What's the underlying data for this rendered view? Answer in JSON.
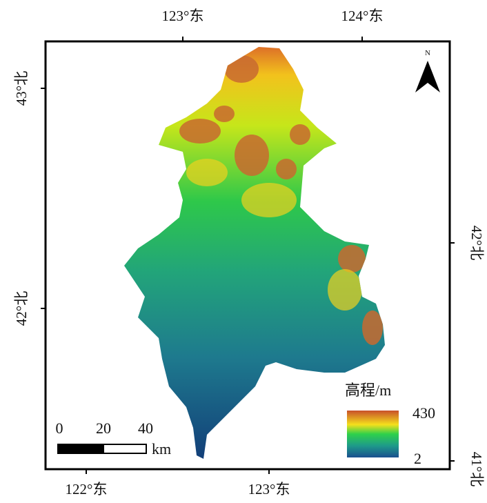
{
  "map": {
    "top_ticks": [
      "123°东",
      "124°东"
    ],
    "bottom_ticks": [
      "122°东",
      "123°东"
    ],
    "left_ticks": [
      "43°北",
      "42°北"
    ],
    "right_ticks": [
      "42°北",
      "41°北"
    ],
    "north": "N",
    "legend": {
      "title": "高程/m",
      "max": 430,
      "min": 2
    },
    "scale_bar": {
      "labels": [
        0,
        20,
        40
      ],
      "unit": "km"
    }
  }
}
